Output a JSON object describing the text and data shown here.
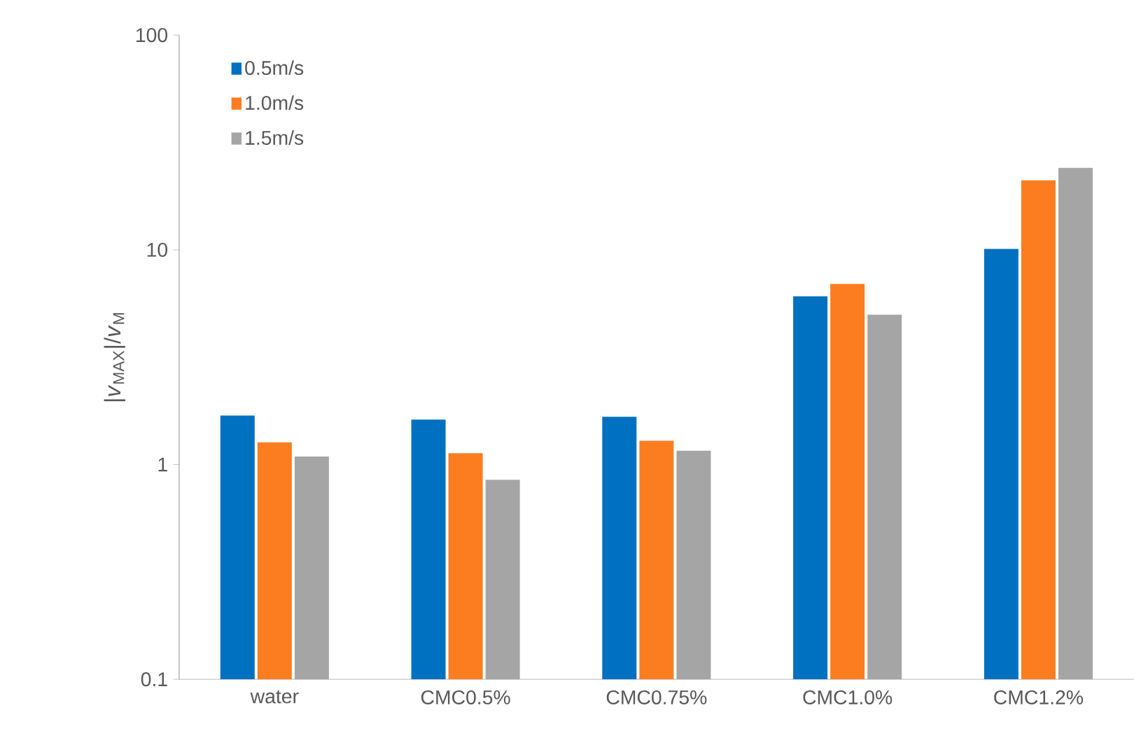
{
  "chart_data": {
    "type": "bar",
    "ylabel": "|*v*$_{MAX}$|/*v*$_{M}$",
    "categories": [
      "water",
      "CMC0.5%",
      "CMC0.75%",
      "CMC1.0%",
      "CMC1.2%"
    ],
    "series": [
      {
        "name": "0.5m/s",
        "color": "#0070c0",
        "values": [
          1.69,
          1.62,
          1.67,
          6.07,
          10.1
        ]
      },
      {
        "name": "1.0m/s",
        "color": "#fb7d1f",
        "values": [
          1.27,
          1.13,
          1.29,
          6.94,
          21.1
        ]
      },
      {
        "name": "1.5m/s",
        "color": "#a5a5a5",
        "values": [
          1.09,
          0.85,
          1.16,
          4.99,
          24.1
        ]
      }
    ],
    "log": "y",
    "ylim": [
      0.1,
      100
    ],
    "yticks": [
      0.1,
      1,
      10,
      100
    ],
    "legend": "top left",
    "grid": false
  }
}
